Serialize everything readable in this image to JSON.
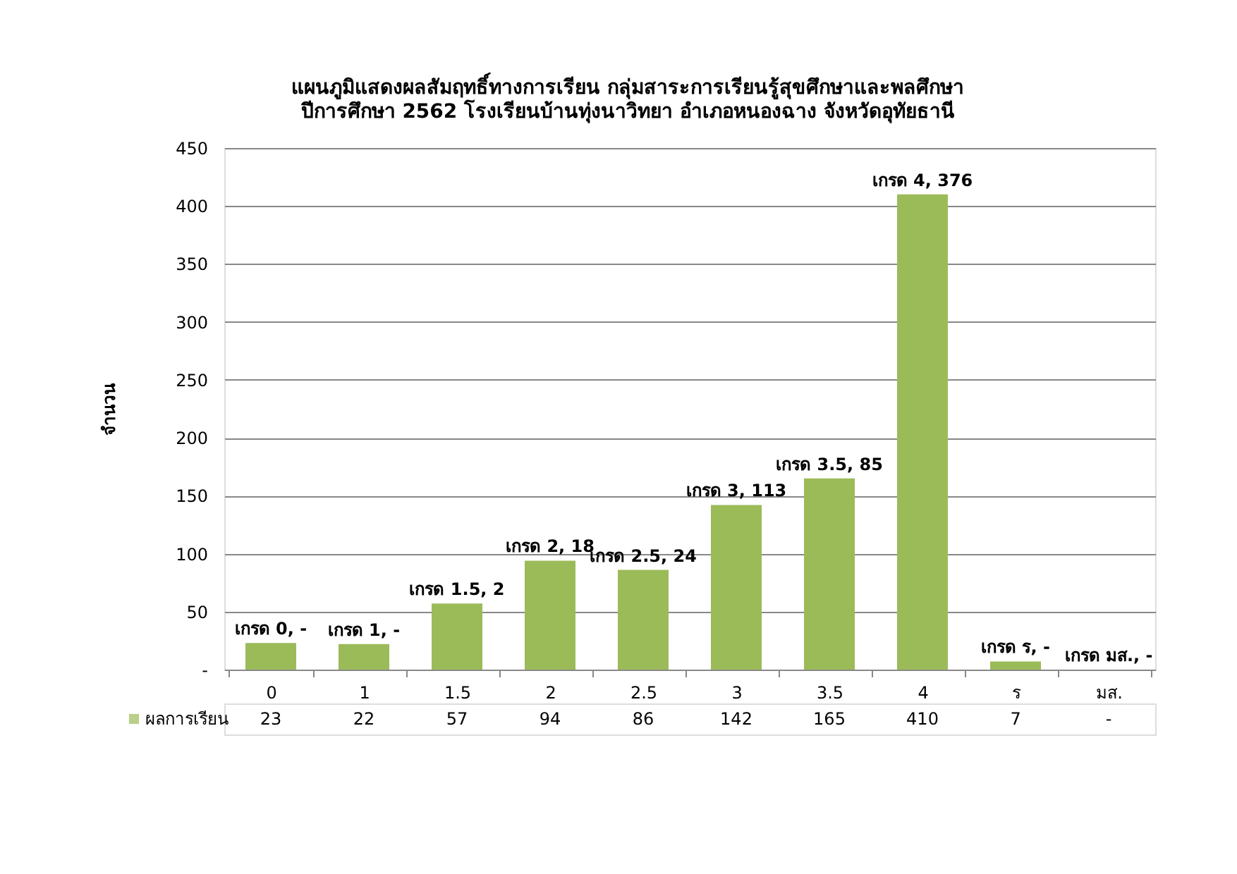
{
  "chart_data": {
    "type": "bar",
    "title": "แผนภูมิแสดงผลสัมฤทธิ์ทางการเรียน กลุ่มสาระการเรียนรู้สุขศึกษาและพลศึกษา",
    "subtitle": "ปีการศึกษา 2562 โรงเรียนบ้านทุ่งนาวิทยา อำเภอหนองฉาง จังหวัดอุทัยธานี",
    "ylabel": "จำนวน",
    "categories": [
      "0",
      "1",
      "1.5",
      "2",
      "2.5",
      "3",
      "3.5",
      "4",
      "ร",
      "มส."
    ],
    "series": [
      {
        "name": "ผลการเรียน",
        "color": "#9bbb59",
        "values": [
          23,
          22,
          57,
          94,
          86,
          142,
          165,
          410,
          7,
          null
        ],
        "value_labels": [
          "23",
          "22",
          "57",
          "94",
          "86",
          "142",
          "165",
          "410",
          "7",
          "-"
        ]
      }
    ],
    "annotations": [
      {
        "text": "เกรด 0, -",
        "x": "0",
        "y": 23
      },
      {
        "text": "เกรด 1, -",
        "x": "1",
        "y": 22
      },
      {
        "text": "เกรด 1.5, 2",
        "x": "1.5",
        "y": 57
      },
      {
        "text": "เกรด 2, 18",
        "x": "2",
        "y": 94
      },
      {
        "text": "เกรด 2.5, 24",
        "x": "2.5",
        "y": 86
      },
      {
        "text": "เกรด 3, 113",
        "x": "3",
        "y": 142
      },
      {
        "text": "เกรด 3.5, 85",
        "x": "3.5",
        "y": 165
      },
      {
        "text": "เกรด 4, 376",
        "x": "4",
        "y": 410
      },
      {
        "text": "เกรด ร, -",
        "x": "ร",
        "y": 7
      },
      "เกรด มส., -"
    ],
    "ylim": [
      0,
      450
    ],
    "yticks": [
      {
        "value": 0,
        "label": "-"
      },
      50,
      100,
      150,
      200,
      250,
      300,
      350,
      400,
      450
    ],
    "grid": "y",
    "legend": "bottom"
  }
}
